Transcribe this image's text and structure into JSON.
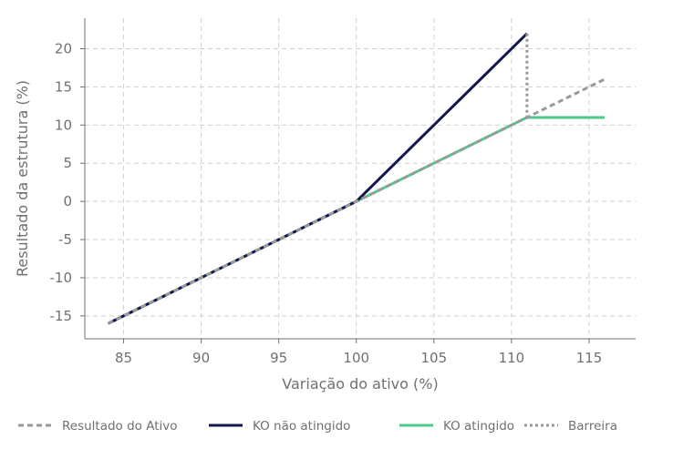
{
  "chart_data": {
    "type": "line",
    "title": "",
    "xlabel": "Variação do ativo (%)",
    "ylabel": "Resultado da estrutura (%)",
    "xlim": [
      82.5,
      118
    ],
    "ylim": [
      -18,
      24
    ],
    "x_ticks": [
      85,
      90,
      95,
      100,
      105,
      110,
      115
    ],
    "y_ticks": [
      -15,
      -10,
      -5,
      0,
      5,
      10,
      15,
      20
    ],
    "grid": true,
    "legend_position": "bottom",
    "series": [
      {
        "name": "Resultado do Ativo",
        "style": "dashed",
        "color": "#999999",
        "points": [
          [
            84,
            -16
          ],
          [
            116,
            16
          ]
        ]
      },
      {
        "name": "KO não atingido",
        "style": "solid",
        "color": "#12174d",
        "points": [
          [
            84,
            -16
          ],
          [
            100,
            0
          ],
          [
            111,
            22
          ]
        ]
      },
      {
        "name": "KO atingido",
        "style": "solid",
        "color": "#4fc98a",
        "points": [
          [
            84,
            -16
          ],
          [
            100,
            0
          ],
          [
            111,
            11
          ],
          [
            116,
            11
          ]
        ]
      },
      {
        "name": "Barreira",
        "style": "dotted",
        "color": "#999999",
        "points": [
          [
            111,
            22
          ],
          [
            111,
            11
          ]
        ]
      }
    ]
  }
}
